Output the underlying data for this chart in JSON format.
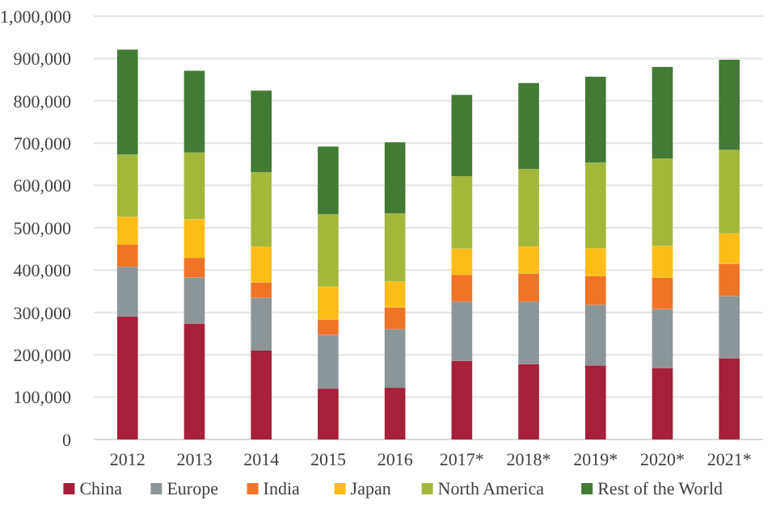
{
  "chart_data": {
    "type": "bar",
    "stacked": true,
    "categories": [
      "2012",
      "2013",
      "2014",
      "2015",
      "2016",
      "2017*",
      "2018*",
      "2019*",
      "2020*",
      "2021*"
    ],
    "series": [
      {
        "name": "China",
        "color": "#a5203a",
        "values": [
          290000,
          274000,
          210000,
          120000,
          122000,
          186000,
          178000,
          175000,
          169000,
          192000
        ]
      },
      {
        "name": "Europe",
        "color": "#8c9598",
        "values": [
          118000,
          109000,
          125000,
          127000,
          139000,
          140000,
          148000,
          143000,
          139000,
          147000
        ]
      },
      {
        "name": "India",
        "color": "#f07427",
        "values": [
          52000,
          46000,
          36000,
          36000,
          51000,
          63000,
          66000,
          68000,
          74000,
          76000
        ]
      },
      {
        "name": "Japan",
        "color": "#fcbd19",
        "values": [
          66000,
          91000,
          85000,
          78000,
          61000,
          62000,
          64000,
          66000,
          75000,
          72000
        ]
      },
      {
        "name": "North America",
        "color": "#a3b83a",
        "values": [
          147000,
          158000,
          175000,
          171000,
          161000,
          171000,
          183000,
          202000,
          207000,
          197000
        ]
      },
      {
        "name": "Rest of the World",
        "color": "#437a35",
        "values": [
          248000,
          193000,
          193000,
          160000,
          168000,
          192000,
          203000,
          203000,
          216000,
          213000
        ]
      }
    ],
    "ylim": [
      0,
      1000000
    ],
    "yticks": [
      {
        "value": 0,
        "label": "0"
      },
      {
        "value": 100000,
        "label": "100,000"
      },
      {
        "value": 200000,
        "label": "200,000"
      },
      {
        "value": 300000,
        "label": "300,000"
      },
      {
        "value": 400000,
        "label": "400,000"
      },
      {
        "value": 500000,
        "label": "500,000"
      },
      {
        "value": 600000,
        "label": "600,000"
      },
      {
        "value": 700000,
        "label": "700,000"
      },
      {
        "value": 800000,
        "label": "800,000"
      },
      {
        "value": 900000,
        "label": "900,000"
      },
      {
        "value": 1000000,
        "label": "1,000,000"
      }
    ],
    "grid": "y",
    "legend": "bottom"
  }
}
